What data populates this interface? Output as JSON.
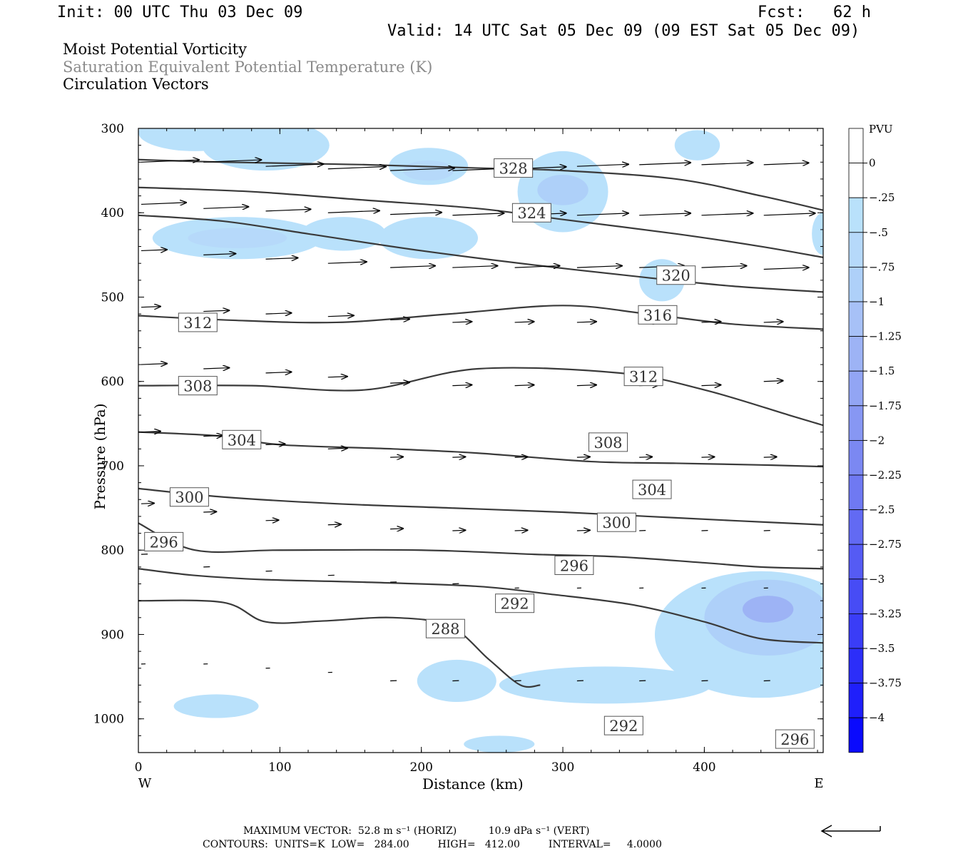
{
  "header": {
    "init": "Init: 00 UTC Thu 03 Dec 09",
    "fcst": "Fcst:   62 h",
    "valid": "Valid: 14 UTC Sat 05 Dec 09 (09 EST Sat 05 Dec 09)"
  },
  "fields": {
    "f1": "Moist Potential Vorticity",
    "f2": "Saturation Equivalent Potential Temperature (K)",
    "f3": "Circulation Vectors"
  },
  "footer": {
    "line1": "MAXIMUM VECTOR:  52.8 m s⁻¹ (HORIZ)          10.9 dPa s⁻¹ (VERT)",
    "line2": "CONTOURS:  UNITS=K  LOW=   284.00         HIGH=   412.00         INTERVAL=     4.0000"
  },
  "colors": {
    "contour": "#3a3a3a",
    "vector": "#000000",
    "pv_fill_light": "#b9e1fb",
    "pv_fill_mid": "#a7c1f7",
    "pv_fill_dark": "#8f9ff2"
  },
  "chart_data": {
    "type": "cross-section",
    "xlabel": "Distance (km)",
    "ylabel": "Pressure (hPa)",
    "xlim": [
      0,
      484
    ],
    "ylim": [
      1040,
      300
    ],
    "x_ticks": [
      0,
      100,
      200,
      300,
      400
    ],
    "y_ticks": [
      300,
      400,
      500,
      600,
      700,
      800,
      900,
      1000
    ],
    "x_end_labels": {
      "left": "W",
      "right": "E"
    },
    "colorbar": {
      "units": "PVU",
      "labels": [
        "0",
        "-.25",
        "-.5",
        "-.75",
        "-1",
        "-1.25",
        "-1.5",
        "-1.75",
        "-2",
        "-2.25",
        "-2.5",
        "-2.75",
        "-3",
        "-3.25",
        "-3.5",
        "-3.75",
        "-4"
      ],
      "colors": [
        "#ffffff",
        "#ffffff",
        "#b9e1fb",
        "#b6d9fa",
        "#aed0f9",
        "#a7c1f7",
        "#9db3f5",
        "#92a5f4",
        "#8797f3",
        "#7b88f2",
        "#6f79f2",
        "#626af3",
        "#555bf4",
        "#474cf5",
        "#3a3df7",
        "#2c2ef9",
        "#1f1ffb",
        "#0a0afd"
      ]
    },
    "contours_thetaE": [
      {
        "level": 328,
        "points": [
          [
            0,
            337
          ],
          [
            60,
            340
          ],
          [
            160,
            343
          ],
          [
            240,
            347
          ],
          [
            300,
            350
          ],
          [
            380,
            360
          ],
          [
            440,
            380
          ],
          [
            484,
            397
          ]
        ]
      },
      {
        "level": 324,
        "points": [
          [
            0,
            370
          ],
          [
            80,
            375
          ],
          [
            160,
            385
          ],
          [
            240,
            395
          ],
          [
            300,
            408
          ],
          [
            380,
            425
          ],
          [
            440,
            440
          ],
          [
            484,
            453
          ]
        ]
      },
      {
        "level": 320,
        "points": [
          [
            0,
            403
          ],
          [
            60,
            410
          ],
          [
            120,
            425
          ],
          [
            200,
            445
          ],
          [
            280,
            462
          ],
          [
            360,
            477
          ],
          [
            420,
            487
          ],
          [
            484,
            494
          ]
        ]
      },
      {
        "level": 316,
        "points": [
          [
            0,
            522
          ],
          [
            60,
            527
          ],
          [
            140,
            530
          ],
          [
            220,
            520
          ],
          [
            300,
            510
          ],
          [
            360,
            520
          ],
          [
            420,
            532
          ],
          [
            484,
            538
          ]
        ]
      },
      {
        "level": 312,
        "points": [
          [
            0,
            605
          ],
          [
            80,
            605
          ],
          [
            160,
            610
          ],
          [
            240,
            585
          ],
          [
            340,
            590
          ],
          [
            400,
            610
          ],
          [
            460,
            640
          ],
          [
            484,
            652
          ]
        ]
      },
      {
        "level": 308,
        "points": [
          [
            0,
            660
          ],
          [
            60,
            665
          ],
          [
            100,
            675
          ],
          [
            180,
            680
          ],
          [
            240,
            685
          ],
          [
            320,
            695
          ],
          [
            380,
            697
          ],
          [
            440,
            699
          ],
          [
            484,
            701
          ]
        ]
      },
      {
        "level": 304,
        "points": [
          [
            0,
            727
          ],
          [
            60,
            737
          ],
          [
            140,
            745
          ],
          [
            220,
            750
          ],
          [
            300,
            755
          ],
          [
            360,
            760
          ],
          [
            420,
            765
          ],
          [
            484,
            770
          ]
        ]
      },
      {
        "level": 300,
        "points": [
          [
            0,
            768
          ],
          [
            40,
            800
          ],
          [
            100,
            800
          ],
          [
            200,
            800
          ],
          [
            280,
            805
          ],
          [
            340,
            808
          ],
          [
            400,
            815
          ],
          [
            440,
            820
          ],
          [
            484,
            822
          ]
        ]
      },
      {
        "level": 296,
        "points": [
          [
            0,
            822
          ],
          [
            40,
            830
          ],
          [
            90,
            835
          ],
          [
            160,
            838
          ],
          [
            240,
            843
          ],
          [
            290,
            852
          ],
          [
            350,
            865
          ],
          [
            400,
            885
          ],
          [
            440,
            905
          ],
          [
            484,
            910
          ]
        ]
      },
      {
        "level": 292,
        "points": [
          [
            0,
            860
          ],
          [
            60,
            862
          ],
          [
            90,
            885
          ],
          [
            130,
            884
          ],
          [
            180,
            880
          ],
          [
            220,
            890
          ],
          [
            248,
            930
          ],
          [
            270,
            960
          ],
          [
            284,
            960
          ]
        ]
      }
    ],
    "contour_labels": [
      {
        "text": "328",
        "x": 265,
        "p": 347
      },
      {
        "text": "324",
        "x": 278,
        "p": 400
      },
      {
        "text": "320",
        "x": 380,
        "p": 474
      },
      {
        "text": "316",
        "x": 367,
        "p": 521
      },
      {
        "text": "312",
        "x": 42,
        "p": 530
      },
      {
        "text": "312",
        "x": 357,
        "p": 594
      },
      {
        "text": "308",
        "x": 42,
        "p": 605
      },
      {
        "text": "308",
        "x": 332,
        "p": 672
      },
      {
        "text": "304",
        "x": 73,
        "p": 669
      },
      {
        "text": "304",
        "x": 363,
        "p": 728
      },
      {
        "text": "300",
        "x": 36,
        "p": 737
      },
      {
        "text": "300",
        "x": 338,
        "p": 767
      },
      {
        "text": "296",
        "x": 18,
        "p": 790
      },
      {
        "text": "296",
        "x": 308,
        "p": 818
      },
      {
        "text": "292",
        "x": 266,
        "p": 863
      },
      {
        "text": "288",
        "x": 217,
        "p": 893
      },
      {
        "text": "292",
        "x": 343,
        "p": 1008
      },
      {
        "text": "296",
        "x": 464,
        "p": 1024
      }
    ],
    "pv_shaded_regions": [
      {
        "level": "-.25",
        "center": [
          40,
          305
        ],
        "radius_km": 40,
        "radius_hpa": 22
      },
      {
        "level": "-.25",
        "center": [
          90,
          320
        ],
        "radius_km": 45,
        "radius_hpa": 30
      },
      {
        "level": "-.25",
        "center": [
          205,
          345
        ],
        "radius_km": 28,
        "radius_hpa": 22
      },
      {
        "level": "-.5",
        "center": [
          205,
          350
        ],
        "radius_km": 18,
        "radius_hpa": 12
      },
      {
        "level": "-.25",
        "center": [
          300,
          375
        ],
        "radius_km": 32,
        "radius_hpa": 48
      },
      {
        "level": "-.75",
        "center": [
          300,
          373
        ],
        "radius_km": 18,
        "radius_hpa": 18
      },
      {
        "level": "-.25",
        "center": [
          70,
          430
        ],
        "radius_km": 60,
        "radius_hpa": 25
      },
      {
        "level": "-.5",
        "center": [
          70,
          430
        ],
        "radius_km": 35,
        "radius_hpa": 12
      },
      {
        "level": "-.25",
        "center": [
          145,
          425
        ],
        "radius_km": 30,
        "radius_hpa": 20
      },
      {
        "level": "-.25",
        "center": [
          205,
          430
        ],
        "radius_km": 35,
        "radius_hpa": 25
      },
      {
        "level": "-.25",
        "center": [
          370,
          480
        ],
        "radius_km": 16,
        "radius_hpa": 25
      },
      {
        "level": "-.25",
        "center": [
          395,
          320
        ],
        "radius_km": 16,
        "radius_hpa": 18
      },
      {
        "level": "-.25",
        "center": [
          484,
          425
        ],
        "radius_km": 8,
        "radius_hpa": 25
      },
      {
        "level": "-.25",
        "center": [
          440,
          900
        ],
        "radius_km": 75,
        "radius_hpa": 75
      },
      {
        "level": "-.25",
        "center": [
          330,
          960
        ],
        "radius_km": 75,
        "radius_hpa": 22
      },
      {
        "level": "-.75",
        "center": [
          445,
          880
        ],
        "radius_km": 45,
        "radius_hpa": 45
      },
      {
        "level": "-1.25",
        "center": [
          445,
          870
        ],
        "radius_km": 18,
        "radius_hpa": 16
      },
      {
        "level": "-.25",
        "center": [
          225,
          955
        ],
        "radius_km": 28,
        "radius_hpa": 25
      },
      {
        "level": "-.25",
        "center": [
          55,
          985
        ],
        "radius_km": 30,
        "radius_hpa": 14
      },
      {
        "level": "-.25",
        "center": [
          255,
          1030
        ],
        "radius_km": 25,
        "radius_hpa": 10
      }
    ],
    "vectors": [
      {
        "row_p": 340,
        "y_p": [
          340,
          340,
          345,
          348,
          350,
          350,
          348,
          345,
          343,
          343,
          343
        ],
        "u": [
          0.9,
          0.9,
          0.9,
          0.9,
          1.0,
          0.9,
          0.8,
          0.8,
          0.8,
          0.8,
          0.7
        ]
      },
      {
        "row_p": 395,
        "y_p": [
          390,
          395,
          398,
          400,
          402,
          403,
          403,
          403,
          403,
          403,
          403
        ],
        "u": [
          0.7,
          0.7,
          0.7,
          0.8,
          0.8,
          0.8,
          0.8,
          0.8,
          0.8,
          0.8,
          0.8
        ]
      },
      {
        "row_p": 455,
        "y_p": [
          445,
          450,
          455,
          460,
          465,
          465,
          465,
          465,
          465,
          465,
          467
        ],
        "u": [
          0.4,
          0.5,
          0.5,
          0.6,
          0.7,
          0.7,
          0.7,
          0.7,
          0.7,
          0.7,
          0.7
        ]
      },
      {
        "row_p": 520,
        "y_p": [
          512,
          517,
          520,
          523,
          527,
          530,
          530,
          530,
          530,
          530,
          530
        ],
        "u": [
          0.3,
          0.4,
          0.4,
          0.4,
          0.3,
          0.3,
          0.3,
          0.3,
          0.3,
          0.3,
          0.3
        ]
      },
      {
        "row_p": 590,
        "y_p": [
          580,
          585,
          590,
          595,
          602,
          605,
          605,
          605,
          605,
          605,
          600
        ],
        "u": [
          0.4,
          0.4,
          0.4,
          0.3,
          0.3,
          0.3,
          0.3,
          0.3,
          0.3,
          0.3,
          0.3
        ]
      },
      {
        "row_p": 680,
        "y_p": [
          660,
          665,
          675,
          680,
          690,
          690,
          690,
          690,
          690,
          690,
          690
        ],
        "u": [
          0.3,
          0.3,
          0.3,
          0.3,
          0.2,
          0.2,
          0.2,
          0.2,
          0.2,
          0.2,
          0.2
        ]
      },
      {
        "row_p": 765,
        "y_p": [
          745,
          755,
          765,
          770,
          775,
          777,
          777,
          777,
          777,
          777,
          777
        ],
        "u": [
          0.2,
          0.2,
          0.2,
          0.2,
          0.2,
          0.2,
          0.2,
          0.2,
          0.1,
          0.1,
          0.1
        ]
      },
      {
        "row_p": 830,
        "y_p": [
          805,
          820,
          825,
          830,
          838,
          840,
          845,
          845,
          845,
          845,
          845
        ],
        "u": [
          0.1,
          0.1,
          0.1,
          0.1,
          0.1,
          0.1,
          0.05,
          0.05,
          0.05,
          0.05,
          0.05
        ]
      },
      {
        "row_p": 930,
        "y_p": [
          935,
          935,
          940,
          945,
          955,
          955,
          955,
          955,
          955,
          955,
          955
        ],
        "u": [
          0.05,
          0.05,
          0.05,
          0.05,
          0.1,
          0.1,
          0.1,
          0.1,
          0.1,
          0.1,
          0.1
        ]
      }
    ]
  }
}
